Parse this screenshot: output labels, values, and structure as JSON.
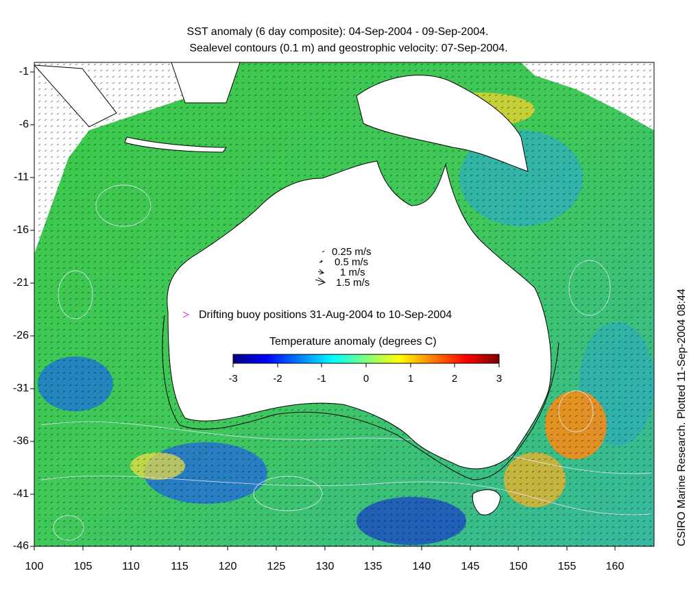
{
  "title": {
    "line1": "SST anomaly (6 day composite): 04-Sep-2004 - 09-Sep-2004.",
    "line2": "Sealevel contours (0.1 m) and geostrophic velocity: 07-Sep-2004."
  },
  "axes": {
    "x_ticks": [
      "100",
      "105",
      "110",
      "115",
      "120",
      "125",
      "130",
      "135",
      "140",
      "145",
      "150",
      "155",
      "160"
    ],
    "y_ticks": [
      "-1",
      "-6",
      "-11",
      "-16",
      "-21",
      "-26",
      "-31",
      "-36",
      "-41",
      "-46"
    ],
    "x_range": [
      100,
      164
    ],
    "y_range": [
      -46,
      1
    ]
  },
  "velocity_legend": {
    "items": [
      "0.25 m/s",
      "0.5 m/s",
      "1 m/s",
      "1.5 m/s"
    ]
  },
  "buoy_legend": {
    "label": "Drifting buoy positions 31-Aug-2004 to 10-Sep-2004",
    "marker_color": "#e040e0"
  },
  "colorbar": {
    "title": "Temperature anomaly (degrees C)",
    "ticks": [
      "-3",
      "-2",
      "-1",
      "0",
      "1",
      "2",
      "3"
    ],
    "range": [
      -3,
      3
    ],
    "colors": [
      "#00007f",
      "#0000ff",
      "#007fff",
      "#00ffff",
      "#7fff7f",
      "#ffff00",
      "#ff7f00",
      "#ff0000",
      "#7f0000"
    ]
  },
  "credit": "CSIRO Marine Research. Plotted 11-Sep-2004 08:44"
}
